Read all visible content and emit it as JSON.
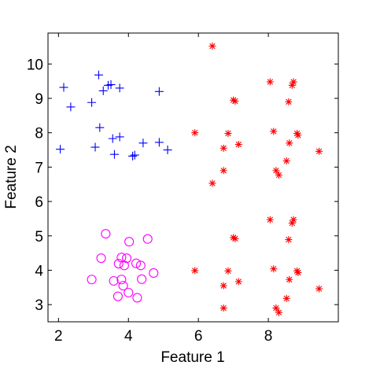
{
  "chart_data": {
    "type": "scatter",
    "xlabel": "Feature 1",
    "ylabel": "Feature 2",
    "xlim": [
      1.7,
      10.0
    ],
    "ylim": [
      2.5,
      10.9
    ],
    "xticks": [
      2,
      4,
      6,
      8
    ],
    "yticks": [
      3,
      4,
      5,
      6,
      7,
      8,
      9,
      10
    ],
    "grid": false,
    "legend": "none",
    "series": [
      {
        "marker": "plus",
        "color": "#0000ff",
        "points": [
          [
            2.15,
            9.32
          ],
          [
            2.35,
            8.75
          ],
          [
            2.95,
            8.88
          ],
          [
            3.15,
            9.68
          ],
          [
            3.28,
            9.22
          ],
          [
            3.42,
            9.38
          ],
          [
            3.5,
            9.4
          ],
          [
            3.75,
            9.3
          ],
          [
            4.88,
            9.2
          ],
          [
            3.18,
            8.15
          ],
          [
            2.05,
            7.52
          ],
          [
            3.05,
            7.58
          ],
          [
            3.55,
            7.83
          ],
          [
            3.75,
            7.88
          ],
          [
            3.6,
            7.37
          ],
          [
            4.12,
            7.32
          ],
          [
            4.18,
            7.35
          ],
          [
            4.42,
            7.7
          ],
          [
            4.88,
            7.72
          ],
          [
            5.12,
            7.5
          ]
        ]
      },
      {
        "marker": "circle",
        "color": "#ff00ff",
        "points": [
          [
            3.35,
            5.06
          ],
          [
            4.02,
            4.83
          ],
          [
            4.55,
            4.91
          ],
          [
            3.22,
            4.35
          ],
          [
            3.72,
            4.19
          ],
          [
            3.8,
            4.37
          ],
          [
            3.95,
            4.35
          ],
          [
            3.88,
            4.14
          ],
          [
            4.22,
            4.2
          ],
          [
            4.35,
            4.14
          ],
          [
            4.72,
            3.92
          ],
          [
            2.95,
            3.73
          ],
          [
            3.58,
            3.69
          ],
          [
            3.8,
            3.73
          ],
          [
            3.85,
            3.55
          ],
          [
            4.38,
            3.74
          ],
          [
            4.0,
            3.35
          ],
          [
            3.7,
            3.24
          ],
          [
            4.25,
            3.2
          ]
        ]
      },
      {
        "marker": "asterisk",
        "color": "#ff0000",
        "points": [
          [
            6.4,
            10.52
          ],
          [
            8.05,
            9.48
          ],
          [
            8.72,
            9.48
          ],
          [
            8.68,
            9.38
          ],
          [
            7.0,
            8.95
          ],
          [
            7.05,
            8.92
          ],
          [
            8.58,
            8.9
          ],
          [
            5.9,
            8.0
          ],
          [
            6.85,
            7.98
          ],
          [
            8.15,
            8.04
          ],
          [
            8.82,
            7.98
          ],
          [
            8.85,
            7.93
          ],
          [
            7.15,
            7.66
          ],
          [
            8.6,
            7.7
          ],
          [
            6.72,
            7.55
          ],
          [
            9.45,
            7.46
          ],
          [
            8.52,
            7.18
          ],
          [
            8.22,
            6.9
          ],
          [
            6.72,
            6.9
          ],
          [
            8.3,
            6.77
          ],
          [
            6.4,
            6.53
          ],
          [
            8.05,
            5.47
          ],
          [
            8.72,
            5.47
          ],
          [
            8.68,
            5.37
          ],
          [
            7.0,
            4.95
          ],
          [
            7.05,
            4.92
          ],
          [
            8.58,
            4.89
          ],
          [
            5.9,
            3.99
          ],
          [
            6.85,
            3.98
          ],
          [
            8.15,
            4.04
          ],
          [
            8.82,
            3.98
          ],
          [
            8.85,
            3.93
          ],
          [
            7.15,
            3.67
          ],
          [
            8.6,
            3.73
          ],
          [
            6.72,
            3.55
          ],
          [
            9.45,
            3.46
          ],
          [
            8.52,
            3.18
          ],
          [
            8.22,
            2.9
          ],
          [
            6.72,
            2.9
          ],
          [
            8.3,
            2.77
          ]
        ]
      }
    ]
  }
}
